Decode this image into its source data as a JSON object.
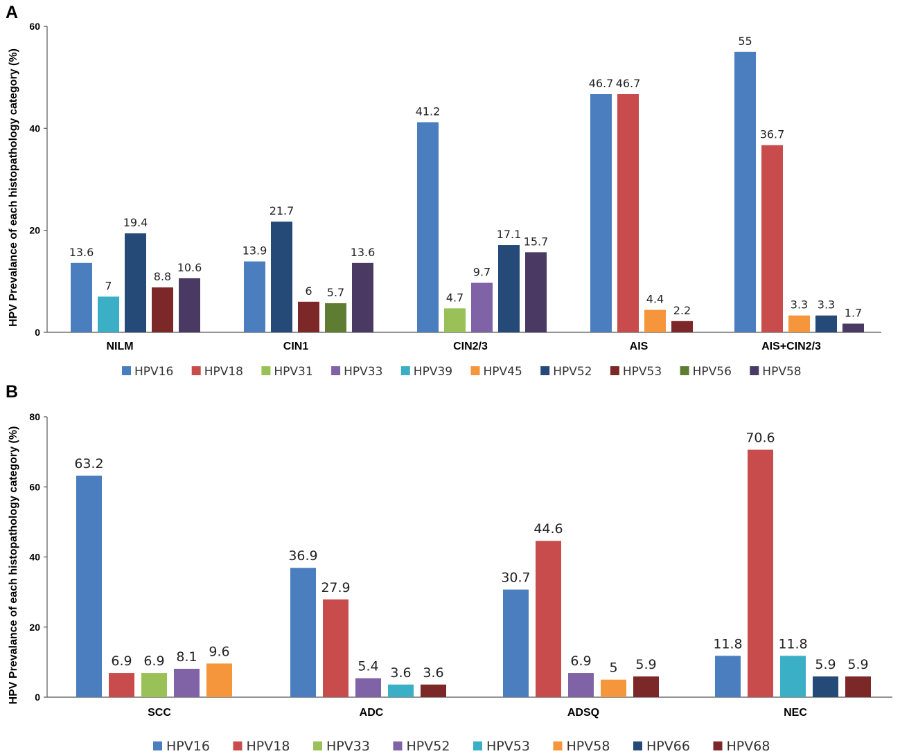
{
  "chart_data": [
    {
      "panel": "A",
      "type": "bar",
      "title": "",
      "ylabel": "HPV Prevalance of each histopathology category (%)",
      "xlabel": "",
      "ylim": [
        0,
        60
      ],
      "yticks": [
        0,
        20,
        40,
        60
      ],
      "categories": [
        "NILM",
        "CIN1",
        "CIN2/3",
        "AIS",
        "AIS+CIN2/3"
      ],
      "legend": [
        {
          "name": "HPV16",
          "color": "#4a7ebf"
        },
        {
          "name": "HPV18",
          "color": "#c94c4c"
        },
        {
          "name": "HPV31",
          "color": "#99c158"
        },
        {
          "name": "HPV33",
          "color": "#8062a6"
        },
        {
          "name": "HPV39",
          "color": "#3bafc6"
        },
        {
          "name": "HPV45",
          "color": "#f5963c"
        },
        {
          "name": "HPV52",
          "color": "#254a77"
        },
        {
          "name": "HPV53",
          "color": "#7d2828"
        },
        {
          "name": "HPV56",
          "color": "#5e7d33"
        },
        {
          "name": "HPV58",
          "color": "#4a3a63"
        }
      ],
      "groups": [
        {
          "category": "NILM",
          "bars": [
            {
              "series": "HPV16",
              "value": 13.6,
              "label": "13.6"
            },
            {
              "series": "HPV39",
              "value": 7,
              "label": "7"
            },
            {
              "series": "HPV52",
              "value": 19.4,
              "label": "19.4"
            },
            {
              "series": "HPV53",
              "value": 8.8,
              "label": "8.8"
            },
            {
              "series": "HPV58",
              "value": 10.6,
              "label": "10.6"
            }
          ]
        },
        {
          "category": "CIN1",
          "bars": [
            {
              "series": "HPV16",
              "value": 13.9,
              "label": "13.9"
            },
            {
              "series": "HPV52",
              "value": 21.7,
              "label": "21.7"
            },
            {
              "series": "HPV53",
              "value": 6,
              "label": "6"
            },
            {
              "series": "HPV56",
              "value": 5.7,
              "label": "5.7"
            },
            {
              "series": "HPV58",
              "value": 13.6,
              "label": "13.6"
            }
          ]
        },
        {
          "category": "CIN2/3",
          "bars": [
            {
              "series": "HPV16",
              "value": 41.2,
              "label": "41.2"
            },
            {
              "series": "HPV31",
              "value": 4.7,
              "label": "4.7"
            },
            {
              "series": "HPV33",
              "value": 9.7,
              "label": "9.7"
            },
            {
              "series": "HPV52",
              "value": 17.1,
              "label": "17.1"
            },
            {
              "series": "HPV58",
              "value": 15.7,
              "label": "15.7"
            }
          ]
        },
        {
          "category": "AIS",
          "bars": [
            {
              "series": "HPV16",
              "value": 46.7,
              "label": "46.7"
            },
            {
              "series": "HPV18",
              "value": 46.7,
              "label": "46.7"
            },
            {
              "series": "HPV45",
              "value": 4.4,
              "label": "4.4"
            },
            {
              "series": "HPV53",
              "value": 2.2,
              "label": "2.2"
            }
          ]
        },
        {
          "category": "AIS+CIN2/3",
          "bars": [
            {
              "series": "HPV16",
              "value": 55,
              "label": "55"
            },
            {
              "series": "HPV18",
              "value": 36.7,
              "label": "36.7"
            },
            {
              "series": "HPV45",
              "value": 3.3,
              "label": "3.3"
            },
            {
              "series": "HPV52",
              "value": 3.3,
              "label": "3.3"
            },
            {
              "series": "HPV58",
              "value": 1.7,
              "label": "1.7"
            }
          ]
        }
      ]
    },
    {
      "panel": "B",
      "type": "bar",
      "title": "",
      "ylabel": "HPV Prevalance of each histopathology category (%)",
      "xlabel": "",
      "ylim": [
        0,
        80
      ],
      "yticks": [
        0,
        20,
        40,
        60,
        80
      ],
      "categories": [
        "SCC",
        "ADC",
        "ADSQ",
        "NEC"
      ],
      "legend": [
        {
          "name": "HPV16",
          "color": "#4a7ebf"
        },
        {
          "name": "HPV18",
          "color": "#c94c4c"
        },
        {
          "name": "HPV33",
          "color": "#99c158"
        },
        {
          "name": "HPV52",
          "color": "#8062a6"
        },
        {
          "name": "HPV53",
          "color": "#3bafc6"
        },
        {
          "name": "HPV58",
          "color": "#f5963c"
        },
        {
          "name": "HPV66",
          "color": "#254a77"
        },
        {
          "name": "HPV68",
          "color": "#7d2828"
        }
      ],
      "groups": [
        {
          "category": "SCC",
          "bars": [
            {
              "series": "HPV16",
              "value": 63.2,
              "label": "63.2"
            },
            {
              "series": "HPV18",
              "value": 6.9,
              "label": "6.9"
            },
            {
              "series": "HPV33",
              "value": 6.9,
              "label": "6.9"
            },
            {
              "series": "HPV52",
              "value": 8.1,
              "label": "8.1"
            },
            {
              "series": "HPV58",
              "value": 9.6,
              "label": "9.6"
            }
          ]
        },
        {
          "category": "ADC",
          "bars": [
            {
              "series": "HPV16",
              "value": 36.9,
              "label": "36.9"
            },
            {
              "series": "HPV18",
              "value": 27.9,
              "label": "27.9"
            },
            {
              "series": "HPV52",
              "value": 5.4,
              "label": "5.4"
            },
            {
              "series": "HPV53",
              "value": 3.6,
              "label": "3.6"
            },
            {
              "series": "HPV68",
              "value": 3.6,
              "label": "3.6"
            }
          ]
        },
        {
          "category": "ADSQ",
          "bars": [
            {
              "series": "HPV16",
              "value": 30.7,
              "label": "30.7"
            },
            {
              "series": "HPV18",
              "value": 44.6,
              "label": "44.6"
            },
            {
              "series": "HPV52",
              "value": 6.9,
              "label": "6.9"
            },
            {
              "series": "HPV58",
              "value": 5,
              "label": "5"
            },
            {
              "series": "HPV68",
              "value": 5.9,
              "label": "5.9"
            }
          ]
        },
        {
          "category": "NEC",
          "bars": [
            {
              "series": "HPV16",
              "value": 11.8,
              "label": "11.8"
            },
            {
              "series": "HPV18",
              "value": 70.6,
              "label": "70.6"
            },
            {
              "series": "HPV53",
              "value": 11.8,
              "label": "11.8"
            },
            {
              "series": "HPV66",
              "value": 5.9,
              "label": "5.9"
            },
            {
              "series": "HPV68",
              "value": 5.9,
              "label": "5.9"
            }
          ]
        }
      ]
    }
  ]
}
